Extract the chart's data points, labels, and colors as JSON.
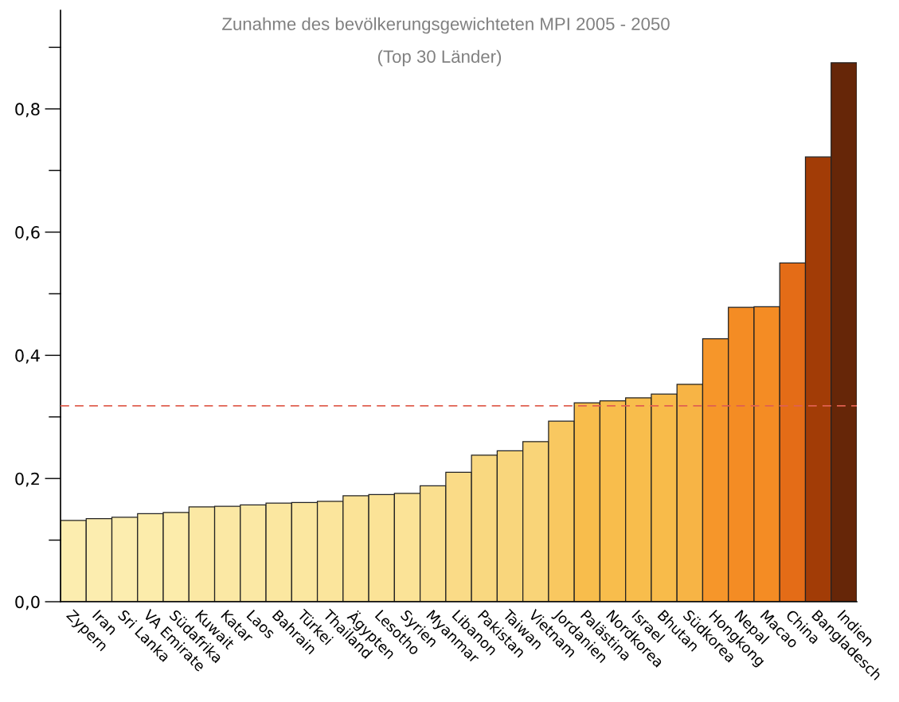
{
  "chart_data": {
    "type": "bar",
    "title": "Zunahme des bevölkerungsgewichteten MPI 2005 - 2050",
    "subtitle": "(Top 30 Länder)",
    "categories": [
      "Zypern",
      "Iran",
      "Sri Lanka",
      "VA Emirate",
      "Südafrika",
      "Kuwait",
      "Katar",
      "Laos",
      "Bahrain",
      "Türkei",
      "Thailand",
      "Ägypten",
      "Lesotho",
      "Syrien",
      "Myanmar",
      "Libanon",
      "Pakistan",
      "Taiwan",
      "Vietnam",
      "Jordanien",
      "Palästina",
      "Nordkorea",
      "Israel",
      "Bhutan",
      "Südkorea",
      "Hongkong",
      "Nepal",
      "Macao",
      "China",
      "Bangladesch",
      "Indien"
    ],
    "values": [
      0.132,
      0.135,
      0.137,
      0.143,
      0.145,
      0.154,
      0.155,
      0.157,
      0.16,
      0.161,
      0.163,
      0.172,
      0.174,
      0.176,
      0.188,
      0.21,
      0.238,
      0.245,
      0.26,
      0.293,
      0.323,
      0.326,
      0.331,
      0.337,
      0.353,
      0.427,
      0.478,
      0.479,
      0.55,
      0.722,
      0.875
    ],
    "colors": [
      "#fcedaf",
      "#fcedaf",
      "#fcedaf",
      "#fcecab",
      "#fcecab",
      "#fbe8a4",
      "#fbe8a4",
      "#fbe8a4",
      "#fbe7a0",
      "#fbe7a0",
      "#fbe59c",
      "#fbe397",
      "#fbe397",
      "#fbe397",
      "#fadf8f",
      "#fadb87",
      "#f9d880",
      "#f9d67c",
      "#f9d478",
      "#f9c860",
      "#f8bd4c",
      "#f8bd4c",
      "#f8bd4c",
      "#f8bb4a",
      "#f7b445",
      "#f6962a",
      "#f48c24",
      "#f48c24",
      "#e46c17",
      "#a23c06",
      "#662608"
    ],
    "ylim": [
      0,
      0.96
    ],
    "yticks": [
      {
        "value": 0,
        "label": "0,0"
      },
      {
        "value": 0.1,
        "label": null
      },
      {
        "value": 0.2,
        "label": "0,2"
      },
      {
        "value": 0.3,
        "label": null
      },
      {
        "value": 0.4,
        "label": "0,4"
      },
      {
        "value": 0.5,
        "label": null
      },
      {
        "value": 0.6,
        "label": "0,6"
      },
      {
        "value": 0.7,
        "label": null
      },
      {
        "value": 0.8,
        "label": "0,8"
      },
      {
        "value": 0.9,
        "label": null
      }
    ],
    "ref_lines": [
      {
        "axis": "y",
        "value": 0.318,
        "color": "#e06050",
        "line_style": "dashed"
      }
    ],
    "grid": false,
    "legend": false
  }
}
